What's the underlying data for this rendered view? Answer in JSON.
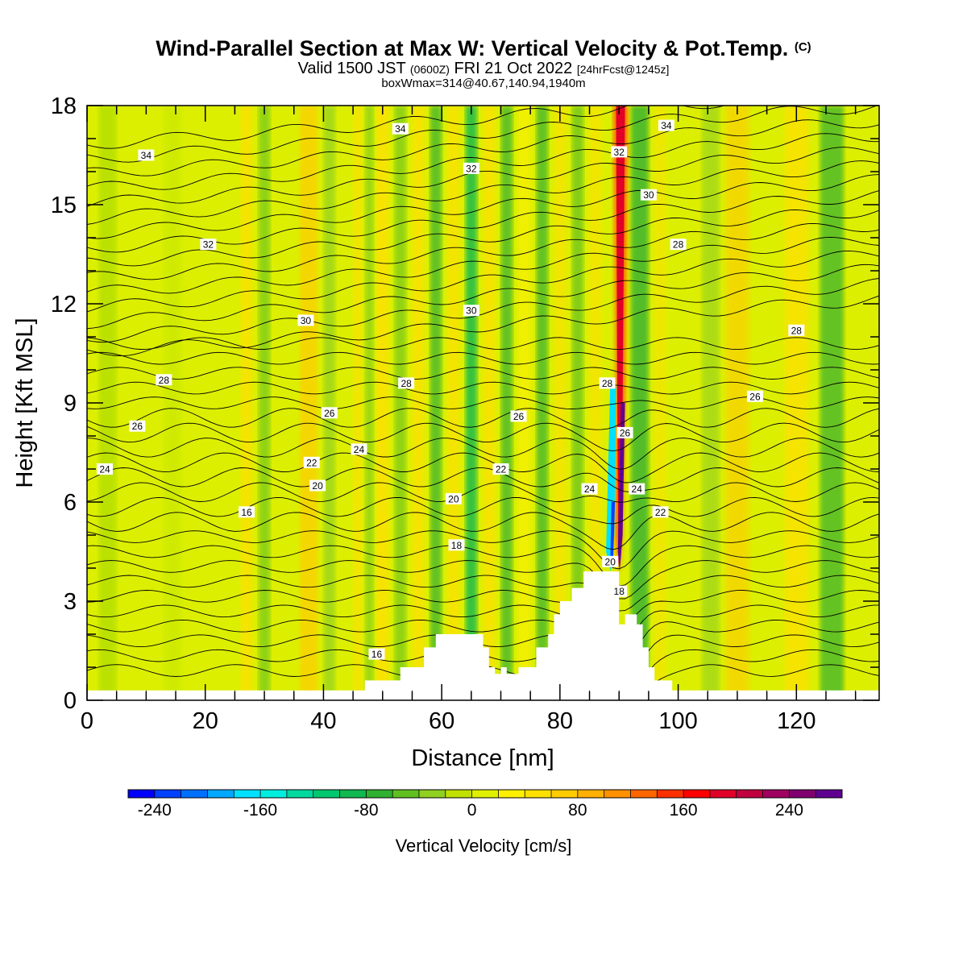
{
  "header": {
    "title_main": "Wind-Parallel Section at Max W: Vertical Velocity & Pot.Temp.",
    "title_mark": "(C)",
    "valid_prefix": "Valid 1500 JST",
    "valid_utc": "(0600Z)",
    "valid_date": "FRI 21 Oct 2022",
    "valid_fcst": "[24hrFcst@1245z]",
    "box_info": "boxWmax=314@40.67,140.94,1940m"
  },
  "chart_data": {
    "type": "heatmap",
    "xlabel": "Distance [nm]",
    "ylabel": "Height [Kft MSL]",
    "xlim": [
      0,
      134
    ],
    "ylim": [
      0,
      18
    ],
    "x_ticks": [
      0,
      20,
      40,
      60,
      80,
      100,
      120
    ],
    "y_ticks": [
      0,
      3,
      6,
      9,
      12,
      15,
      18
    ],
    "colorbar": {
      "label": "Vertical Velocity [cm/s]",
      "min": -260,
      "max": 280,
      "step": 20,
      "tick_values": [
        -240,
        -160,
        -80,
        0,
        80,
        160,
        240
      ],
      "colors": [
        "#0000ff",
        "#0040ff",
        "#0070ff",
        "#00a8ff",
        "#00e0ff",
        "#00eedd",
        "#00d8a0",
        "#00c870",
        "#10b850",
        "#30b030",
        "#60c020",
        "#90d020",
        "#c0e000",
        "#dff000",
        "#fff000",
        "#ffe000",
        "#ffcc00",
        "#ffb000",
        "#ff9000",
        "#ff6600",
        "#ff3000",
        "#ff0000",
        "#e00028",
        "#c00040",
        "#a00060",
        "#800070",
        "#600090"
      ]
    },
    "theta_contour_labels": [
      {
        "x": 10,
        "y": 16.5,
        "text": "34"
      },
      {
        "x": 53,
        "y": 17.3,
        "text": "34"
      },
      {
        "x": 98,
        "y": 17.4,
        "text": "34"
      },
      {
        "x": 65,
        "y": 16.1,
        "text": "32"
      },
      {
        "x": 90,
        "y": 16.6,
        "text": "32"
      },
      {
        "x": 20.5,
        "y": 13.8,
        "text": "32"
      },
      {
        "x": 95,
        "y": 15.3,
        "text": "30"
      },
      {
        "x": 65,
        "y": 11.8,
        "text": "30"
      },
      {
        "x": 37,
        "y": 11.5,
        "text": "30"
      },
      {
        "x": 100,
        "y": 13.8,
        "text": "28"
      },
      {
        "x": 120,
        "y": 11.2,
        "text": "28"
      },
      {
        "x": 13,
        "y": 9.7,
        "text": "28"
      },
      {
        "x": 54,
        "y": 9.6,
        "text": "28"
      },
      {
        "x": 88,
        "y": 9.6,
        "text": "28"
      },
      {
        "x": 113,
        "y": 9.2,
        "text": "26"
      },
      {
        "x": 8.5,
        "y": 8.3,
        "text": "26"
      },
      {
        "x": 41,
        "y": 8.7,
        "text": "26"
      },
      {
        "x": 73,
        "y": 8.6,
        "text": "26"
      },
      {
        "x": 91,
        "y": 8.1,
        "text": "26"
      },
      {
        "x": 3,
        "y": 7.0,
        "text": "24"
      },
      {
        "x": 46,
        "y": 7.6,
        "text": "24"
      },
      {
        "x": 85,
        "y": 6.4,
        "text": "24"
      },
      {
        "x": 93,
        "y": 6.4,
        "text": "24"
      },
      {
        "x": 38,
        "y": 7.2,
        "text": "22"
      },
      {
        "x": 70,
        "y": 7.0,
        "text": "22"
      },
      {
        "x": 97,
        "y": 5.7,
        "text": "22"
      },
      {
        "x": 39,
        "y": 6.5,
        "text": "20"
      },
      {
        "x": 62,
        "y": 6.1,
        "text": "20"
      },
      {
        "x": 88.5,
        "y": 4.2,
        "text": "20"
      },
      {
        "x": 27,
        "y": 5.7,
        "text": "16"
      },
      {
        "x": 62.5,
        "y": 4.7,
        "text": "18"
      },
      {
        "x": 90,
        "y": 3.3,
        "text": "18"
      },
      {
        "x": 49,
        "y": 1.4,
        "text": "16"
      }
    ],
    "terrain": [
      [
        0,
        0.3
      ],
      [
        47,
        0.3
      ],
      [
        47,
        0.6
      ],
      [
        53,
        0.6
      ],
      [
        53,
        1.0
      ],
      [
        57,
        1.0
      ],
      [
        57,
        1.6
      ],
      [
        59,
        1.6
      ],
      [
        59,
        2.0
      ],
      [
        63,
        2.0
      ],
      [
        67,
        2.0
      ],
      [
        67,
        1.6
      ],
      [
        68,
        1.6
      ],
      [
        68,
        1.0
      ],
      [
        69,
        1.0
      ],
      [
        69,
        0.8
      ],
      [
        70,
        0.8
      ],
      [
        70,
        1.0
      ],
      [
        71,
        1.0
      ],
      [
        71,
        0.8
      ],
      [
        73,
        0.8
      ],
      [
        73,
        1.0
      ],
      [
        76,
        1.0
      ],
      [
        76,
        1.6
      ],
      [
        78,
        1.6
      ],
      [
        78,
        2.0
      ],
      [
        79,
        2.0
      ],
      [
        79,
        2.6
      ],
      [
        80,
        2.6
      ],
      [
        80,
        3.0
      ],
      [
        82,
        3.0
      ],
      [
        82,
        3.4
      ],
      [
        84,
        3.4
      ],
      [
        84,
        3.9
      ],
      [
        90,
        3.9
      ],
      [
        90,
        2.3
      ],
      [
        91,
        2.3
      ],
      [
        91,
        2.6
      ],
      [
        93,
        2.6
      ],
      [
        93,
        2.3
      ],
      [
        94,
        2.3
      ],
      [
        94,
        1.6
      ],
      [
        95,
        1.6
      ],
      [
        95,
        1.0
      ],
      [
        96,
        1.0
      ],
      [
        96,
        0.6
      ],
      [
        99,
        0.6
      ],
      [
        99,
        0.3
      ],
      [
        134,
        0.3
      ]
    ]
  },
  "colorbar_label": "Vertical Velocity [cm/s]"
}
